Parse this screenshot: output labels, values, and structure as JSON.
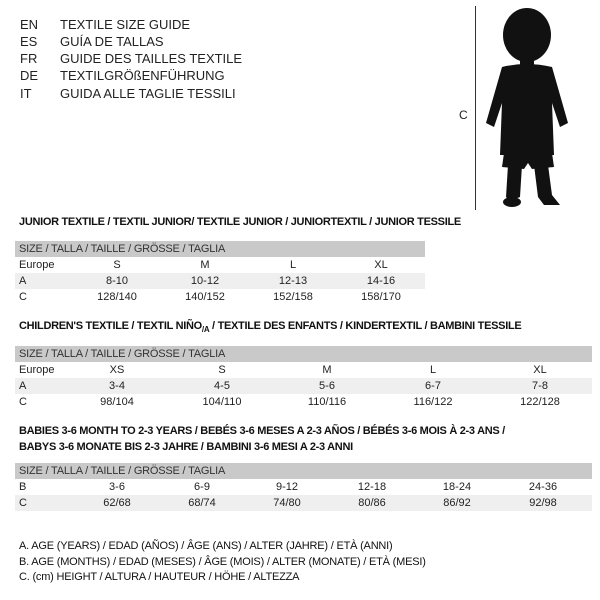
{
  "header": {
    "languages": [
      {
        "code": "EN",
        "text": "TEXTILE SIZE GUIDE"
      },
      {
        "code": "ES",
        "text": "GUÍA DE TALLAS"
      },
      {
        "code": "FR",
        "text": "GUIDE DES TAILLES TEXTILE"
      },
      {
        "code": "DE",
        "text": "TEXTILGRÖßENFÜHRUNG"
      },
      {
        "code": "IT",
        "text": "GUIDA ALLE TAGLIE TESSILI"
      }
    ],
    "figure_label": "C",
    "figure_icon": "child-silhouette-icon"
  },
  "size_header": "SIZE / TALLA / TAILLE / GRÖSSE / TAGLIA",
  "tables": [
    {
      "title": "JUNIOR TEXTILE / TEXTIL JUNIOR/ TEXTILE JUNIOR / JUNIORTEXTIL / JUNIOR TESSILE",
      "rows": [
        {
          "label": "Europe",
          "values": [
            "S",
            "M",
            "L",
            "XL"
          ]
        },
        {
          "label": "A",
          "values": [
            "8-10",
            "10-12",
            "12-13",
            "14-16"
          ]
        },
        {
          "label": "C",
          "values": [
            "128/140",
            "140/152",
            "152/158",
            "158/170"
          ]
        }
      ]
    },
    {
      "title": "CHILDREN'S TEXTILE / TEXTIL NIÑO",
      "title_sub": "/A",
      "title_rest": " / TEXTILE DES ENFANTS / KINDERTEXTIL / BAMBINI TESSILE",
      "rows": [
        {
          "label": "Europe",
          "values": [
            "XS",
            "S",
            "M",
            "L",
            "XL"
          ]
        },
        {
          "label": "A",
          "values": [
            "3-4",
            "4-5",
            "5-6",
            "6-7",
            "7-8"
          ]
        },
        {
          "label": "C",
          "values": [
            "98/104",
            "104/110",
            "110/116",
            "116/122",
            "122/128"
          ]
        }
      ]
    },
    {
      "title": "BABIES 3-6 MONTH TO 2-3 YEARS / BEBÉS 3-6 MESES A 2-3 AÑOS / BÉBÉS 3-6 MOIS À 2-3 ANS /",
      "title2": "BABYS 3-6 MONATE BIS 2-3 JAHRE / BAMBINI 3-6 MESI A 2-3 ANNI",
      "rows": [
        {
          "label": "B",
          "values": [
            "3-6",
            "6-9",
            "9-12",
            "12-18",
            "18-24",
            "24-36"
          ]
        },
        {
          "label": "C",
          "values": [
            "62/68",
            "68/74",
            "74/80",
            "80/86",
            "86/92",
            "92/98"
          ]
        }
      ]
    }
  ],
  "footnotes": [
    "A. AGE (YEARS) / EDAD (AÑOS) / ÂGE (ANS) / ALTER (JAHRE) / ETÀ (ANNI)",
    "B. AGE (MONTHS) / EDAD (MESES) / ÂGE (MOIS) / ALTER (MONATE) / ETÀ (MESI)",
    "C. (cm) HEIGHT / ALTURA / HAUTEUR / HÖHE / ALTEZZA"
  ]
}
